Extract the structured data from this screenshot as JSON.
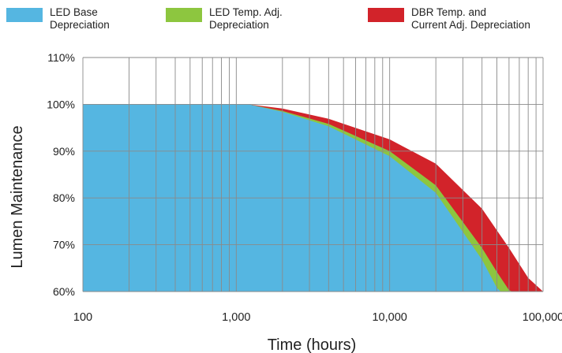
{
  "chart_data": {
    "type": "area",
    "xlabel": "Time (hours)",
    "ylabel": "Lumen Maintenance",
    "xscale": "log",
    "xlim": [
      100,
      100000
    ],
    "ylim": [
      60,
      110
    ],
    "x_ticks": [
      100,
      1000,
      10000,
      100000
    ],
    "x_tick_labels": [
      "100",
      "1,000",
      "10,000",
      "100,000"
    ],
    "y_ticks": [
      60,
      70,
      80,
      90,
      100,
      110
    ],
    "y_tick_labels": [
      "60%",
      "70%",
      "80%",
      "90%",
      "100%",
      "110%"
    ],
    "grid": true,
    "legend_position": "top",
    "series": [
      {
        "name": "DBR Temp. and\nCurrent Adj. Depreciation",
        "color": "#d2232a",
        "x": [
          100,
          1000,
          1200,
          2000,
          4000,
          10000,
          20000,
          40000,
          60000,
          80000,
          100000
        ],
        "y": [
          100,
          100,
          100,
          99.1,
          96.9,
          92.5,
          87.3,
          77.7,
          69.3,
          62.9,
          60
        ]
      },
      {
        "name": "LED Temp. Adj.\nDepreciation",
        "color": "#8dc63f",
        "x": [
          100,
          1000,
          1200,
          2000,
          4000,
          10000,
          20000,
          40000,
          50000,
          60000,
          63000
        ],
        "y": [
          100,
          100,
          100,
          98.6,
          95.8,
          90,
          82.7,
          69.3,
          64.2,
          60.3,
          60
        ]
      },
      {
        "name": "LED Base\nDepreciation",
        "color": "#55b6e1",
        "x": [
          100,
          1000,
          1200,
          2000,
          4000,
          10000,
          20000,
          40000,
          50000,
          53000
        ],
        "y": [
          100,
          100,
          100,
          98.4,
          95.3,
          88.9,
          81.1,
          66.8,
          60.8,
          60
        ]
      }
    ]
  },
  "legend": [
    {
      "label": "LED Base\nDepreciation",
      "color": "#55b6e1"
    },
    {
      "label": "LED Temp. Adj.\nDepreciation",
      "color": "#8dc63f"
    },
    {
      "label": "DBR Temp. and\nCurrent Adj. Depreciation",
      "color": "#d2232a"
    }
  ]
}
